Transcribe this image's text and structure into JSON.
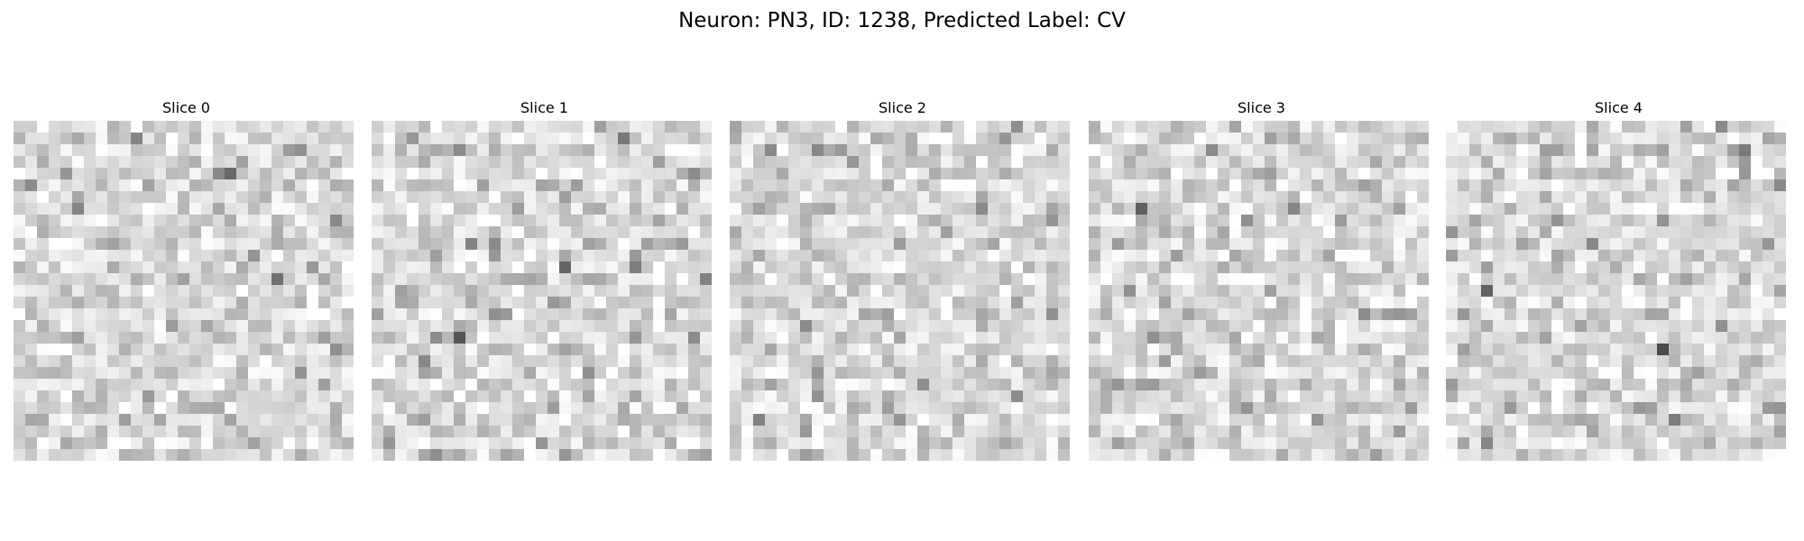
{
  "title": "Neuron: PN3, ID: 1238, Predicted Label: CV",
  "panels": [
    {
      "title": "Slice 0"
    },
    {
      "title": "Slice 1"
    },
    {
      "title": "Slice 2"
    },
    {
      "title": "Slice 3"
    },
    {
      "title": "Slice 4"
    }
  ]
}
